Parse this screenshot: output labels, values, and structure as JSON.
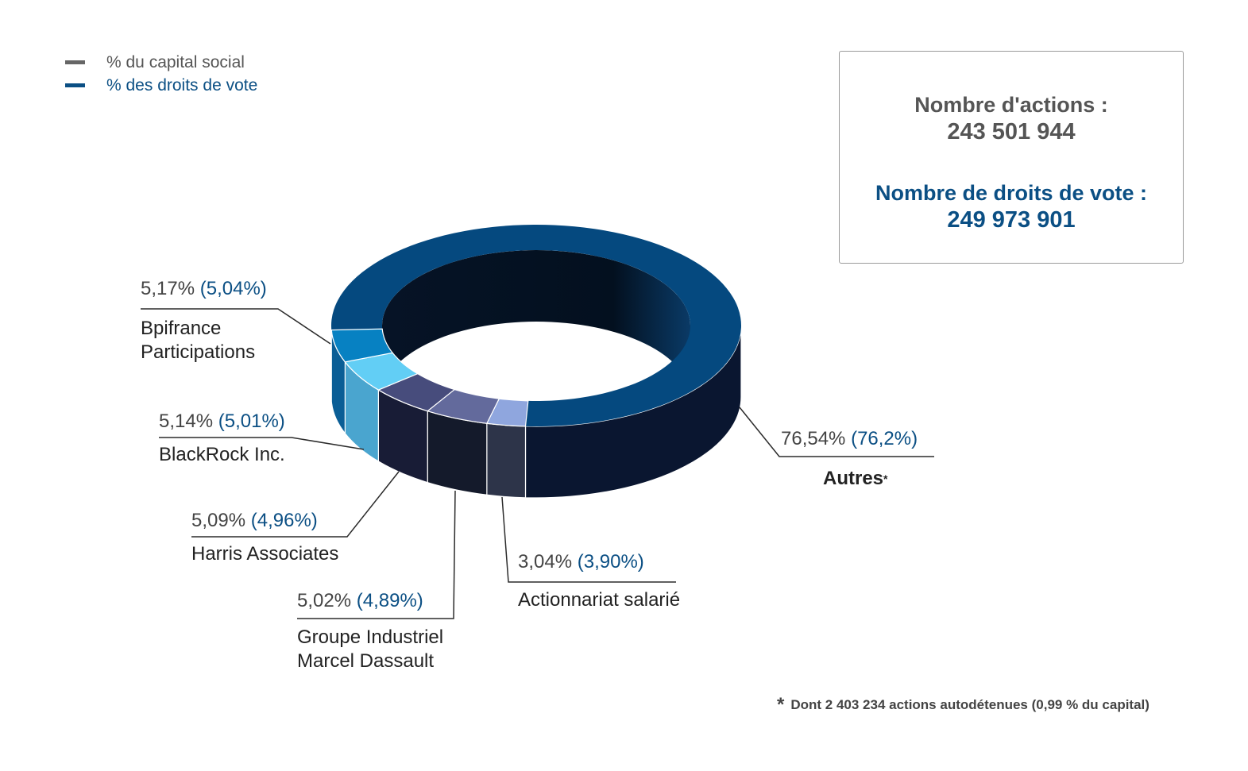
{
  "legend": {
    "capital_label": "% du capital social",
    "vote_label": "% des droits de vote",
    "capital_color": "#666666",
    "vote_color": "#0b4f84"
  },
  "info_box": {
    "actions_label": "Nombre d'actions :",
    "actions_value": "243 501 944",
    "votes_label": "Nombre de droits de vote :",
    "votes_value": "249 973 901"
  },
  "footnote": {
    "star": "*",
    "text": "Dont 2 403 234 actions autodétenues  (0,99 % du capital)"
  },
  "chart_data": {
    "type": "pie",
    "style": "3d-donut",
    "slices": [
      {
        "name": "Autres",
        "suffix": "*",
        "capital": 76.54,
        "votes": 76.2,
        "capital_label": "76,54%",
        "votes_label": "(76,2%)",
        "top_color": "#05497f",
        "side_color": "#0a1630"
      },
      {
        "name": "Actionnariat salarié",
        "capital": 3.04,
        "votes": 3.9,
        "capital_label": "3,04%",
        "votes_label": "(3,90%)",
        "top_color": "#8fa6de",
        "side_color": "#2d3449"
      },
      {
        "name": "Groupe Industriel Marcel Dassault",
        "line1": "Groupe Industriel",
        "line2": "Marcel Dassault",
        "capital": 5.02,
        "votes": 4.89,
        "capital_label": "5,02%",
        "votes_label": "(4,89%)",
        "top_color": "#636a9c",
        "side_color": "#141a2b"
      },
      {
        "name": "Harris Associates",
        "capital": 5.09,
        "votes": 4.96,
        "capital_label": "5,09%",
        "votes_label": "(4,96%)",
        "top_color": "#474c7c",
        "side_color": "#181c36"
      },
      {
        "name": "BlackRock Inc.",
        "capital": 5.14,
        "votes": 5.01,
        "capital_label": "5,14%",
        "votes_label": "(5,01%)",
        "top_color": "#62cef5",
        "side_color": "#4aa5cf"
      },
      {
        "name": "Bpifrance Participations",
        "line1": "Bpifrance",
        "line2": "Participations",
        "capital": 5.17,
        "votes": 5.04,
        "capital_label": "5,17%",
        "votes_label": "(5,04%)",
        "top_color": "#0781c2",
        "side_color": "#0a5e96"
      }
    ]
  }
}
